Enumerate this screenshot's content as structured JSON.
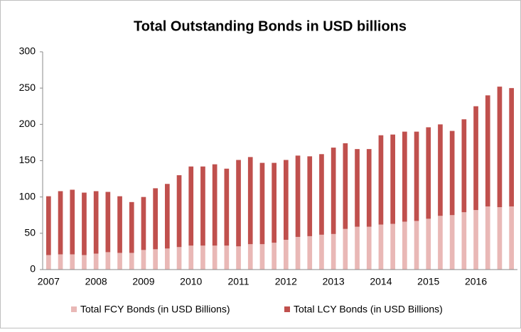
{
  "chart_data": {
    "type": "stacked_bar",
    "title": "Total Outstanding Bonds in USD billions",
    "categories": [
      "2007",
      null,
      null,
      null,
      "2008",
      null,
      null,
      null,
      "2009",
      null,
      null,
      null,
      "2010",
      null,
      null,
      null,
      "2011",
      null,
      null,
      null,
      "2012",
      null,
      null,
      null,
      "2013",
      null,
      null,
      null,
      "2014",
      null,
      null,
      null,
      "2015",
      null,
      null,
      null,
      "2016",
      null,
      null,
      null
    ],
    "series": [
      {
        "name": "Total FCY Bonds (in USD Billions)",
        "color": "#e9b8b6",
        "values": [
          20,
          21,
          21,
          20,
          22,
          24,
          23,
          23,
          27,
          28,
          29,
          31,
          33,
          33,
          33,
          33,
          32,
          35,
          35,
          37,
          41,
          45,
          46,
          48,
          49,
          56,
          59,
          59,
          62,
          63,
          66,
          67,
          70,
          74,
          75,
          79,
          82,
          87,
          86,
          87
        ]
      },
      {
        "name": "Total LCY Bonds (in USD Billions)",
        "color": "#c0504d",
        "values": [
          81,
          87,
          89,
          86,
          86,
          83,
          78,
          70,
          73,
          84,
          89,
          99,
          109,
          109,
          112,
          106,
          119,
          120,
          112,
          110,
          110,
          112,
          110,
          111,
          119,
          118,
          107,
          107,
          123,
          123,
          124,
          123,
          126,
          126,
          116,
          128,
          143,
          153,
          166,
          163
        ]
      }
    ],
    "ylim": [
      0,
      300
    ],
    "yticks": [
      0,
      50,
      100,
      150,
      200,
      250,
      300
    ],
    "legend": "bottom"
  }
}
